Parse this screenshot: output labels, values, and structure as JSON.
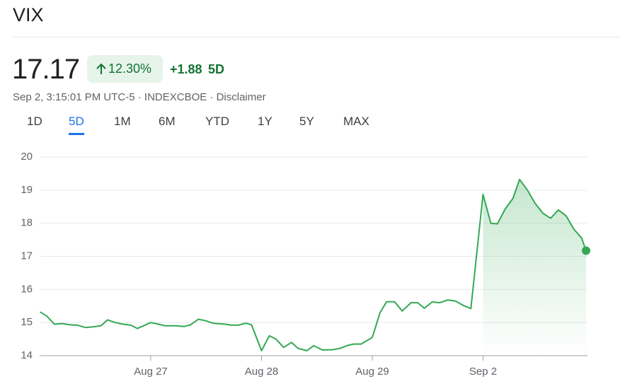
{
  "header": {
    "title": "VIX",
    "price": "17.17",
    "change_pct": "12.30%",
    "change": "+1.88",
    "period": "5D",
    "meta": "Sep 2, 3:15:01 PM UTC-5 · INDEXCBOE · Disclaimer"
  },
  "tabs": {
    "items": [
      "1D",
      "5D",
      "1M",
      "6M",
      "YTD",
      "1Y",
      "5Y",
      "MAX"
    ],
    "active": 1
  },
  "chart_data": {
    "type": "line",
    "color": "#34a853",
    "grid": true,
    "xlim": [
      0,
      5
    ],
    "ylim": [
      14,
      20
    ],
    "xticks": [
      {
        "value": 1,
        "label": "Aug 27"
      },
      {
        "value": 2,
        "label": "Aug 28"
      },
      {
        "value": 3,
        "label": "Aug 29"
      },
      {
        "value": 4,
        "label": "Sep 2"
      }
    ],
    "yticks": [
      14,
      15,
      16,
      17,
      18,
      19,
      20
    ],
    "x": [
      0.0,
      0.06,
      0.13,
      0.2,
      0.27,
      0.34,
      0.41,
      0.48,
      0.55,
      0.61,
      0.68,
      0.75,
      0.82,
      0.88,
      1.0,
      1.07,
      1.13,
      1.23,
      1.3,
      1.36,
      1.43,
      1.5,
      1.56,
      1.67,
      1.73,
      1.79,
      1.86,
      1.91,
      2.0,
      2.07,
      2.13,
      2.2,
      2.27,
      2.33,
      2.41,
      2.47,
      2.55,
      2.64,
      2.71,
      2.77,
      2.83,
      2.9,
      3.0,
      3.07,
      3.13,
      3.2,
      3.27,
      3.35,
      3.41,
      3.47,
      3.54,
      3.61,
      3.68,
      3.75,
      3.82,
      3.89,
      4.0,
      4.07,
      4.13,
      4.2,
      4.27,
      4.33,
      4.4,
      4.47,
      4.54,
      4.61,
      4.68,
      4.75,
      4.82,
      4.89,
      4.93
    ],
    "values": [
      15.32,
      15.2,
      14.95,
      14.97,
      14.93,
      14.92,
      14.85,
      14.87,
      14.9,
      15.08,
      15.0,
      14.95,
      14.92,
      14.82,
      15.0,
      14.95,
      14.9,
      14.9,
      14.88,
      14.93,
      15.1,
      15.05,
      14.98,
      14.95,
      14.92,
      14.92,
      14.98,
      14.93,
      14.15,
      14.6,
      14.5,
      14.25,
      14.4,
      14.22,
      14.15,
      14.3,
      14.17,
      14.18,
      14.22,
      14.3,
      14.35,
      14.35,
      14.55,
      15.3,
      15.63,
      15.63,
      15.35,
      15.6,
      15.6,
      15.43,
      15.62,
      15.6,
      15.68,
      15.65,
      15.52,
      15.42,
      18.87,
      18.0,
      17.98,
      18.43,
      18.75,
      19.32,
      19.0,
      18.6,
      18.3,
      18.15,
      18.4,
      18.22,
      17.82,
      17.55,
      17.17
    ]
  }
}
